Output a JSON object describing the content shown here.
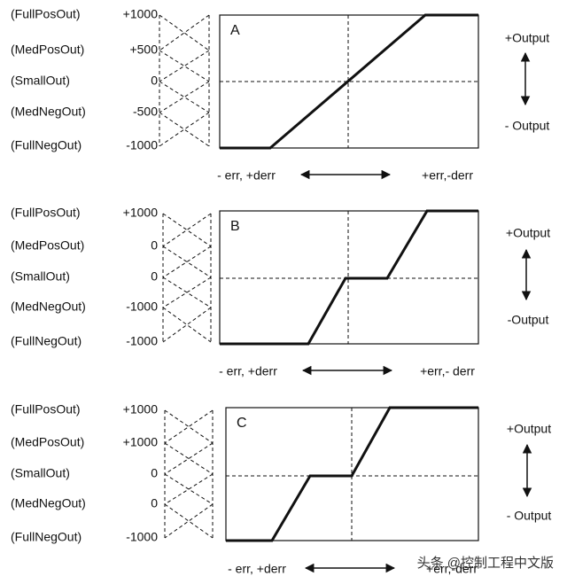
{
  "panels": [
    {
      "label": "A",
      "rows": [
        {
          "name": "(FullPosOut)",
          "value": "+1000"
        },
        {
          "name": "(MedPosOut)",
          "value": "+500"
        },
        {
          "name": "(SmallOut)",
          "value": "0"
        },
        {
          "name": "(MedNegOut)",
          "value": "-500"
        },
        {
          "name": "(FullNegOut)",
          "value": "-1000"
        }
      ],
      "x_left": "- err, +derr",
      "x_right": "+err,-derr",
      "output_top": "+Output",
      "output_bottom": "- Output"
    },
    {
      "label": "B",
      "rows": [
        {
          "name": "(FullPosOut)",
          "value": "+1000"
        },
        {
          "name": "(MedPosOut)",
          "value": "0"
        },
        {
          "name": "(SmallOut)",
          "value": "0"
        },
        {
          "name": "(MedNegOut)",
          "value": "-1000"
        },
        {
          "name": "(FullNegOut)",
          "value": "-1000"
        }
      ],
      "x_left": "- err, +derr",
      "x_right": "+err,- derr",
      "output_top": "+Output",
      "output_bottom": "-Output"
    },
    {
      "label": "C",
      "rows": [
        {
          "name": "(FullPosOut)",
          "value": "+1000"
        },
        {
          "name": "(MedPosOut)",
          "value": "+1000"
        },
        {
          "name": "(SmallOut)",
          "value": "0"
        },
        {
          "name": "(MedNegOut)",
          "value": "0"
        },
        {
          "name": "(FullNegOut)",
          "value": "-1000"
        }
      ],
      "x_left": "- err, +derr",
      "x_right": "+err,-derr",
      "output_top": "+Output",
      "output_bottom": "- Output"
    }
  ],
  "watermark": "头条 @控制工程中文版"
}
